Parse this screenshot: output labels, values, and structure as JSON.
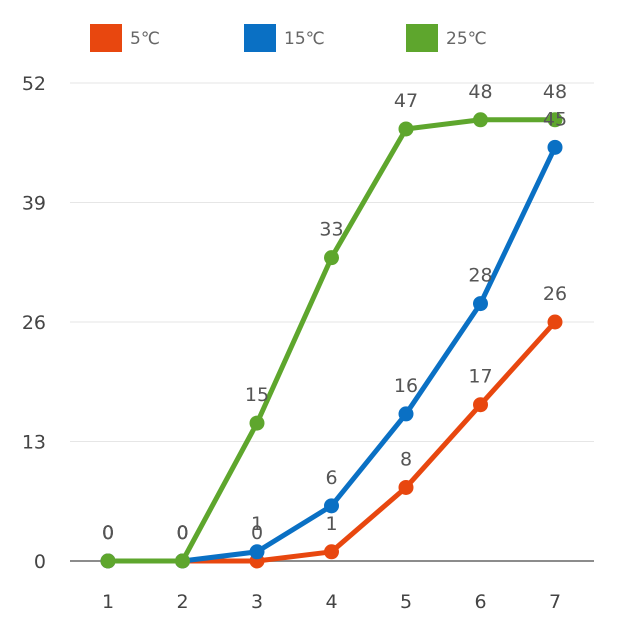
{
  "chart_data": {
    "type": "line",
    "categories": [
      "1",
      "2",
      "3",
      "4",
      "5",
      "6",
      "7"
    ],
    "series": [
      {
        "name": "5℃",
        "color": "#e8470f",
        "values": [
          0,
          0,
          0,
          1,
          8,
          17,
          26
        ]
      },
      {
        "name": "15℃",
        "color": "#0a70c4",
        "values": [
          0,
          0,
          1,
          6,
          16,
          28,
          45
        ]
      },
      {
        "name": "25℃",
        "color": "#5ea62d",
        "values": [
          0,
          0,
          15,
          33,
          47,
          48,
          48
        ]
      }
    ],
    "yticks": [
      "0",
      "13",
      "26",
      "39",
      "52"
    ],
    "ylim": [
      0,
      52
    ],
    "title": "",
    "xlabel": "",
    "ylabel": "",
    "grid": true,
    "legend_position": "top",
    "data_labels": true
  }
}
